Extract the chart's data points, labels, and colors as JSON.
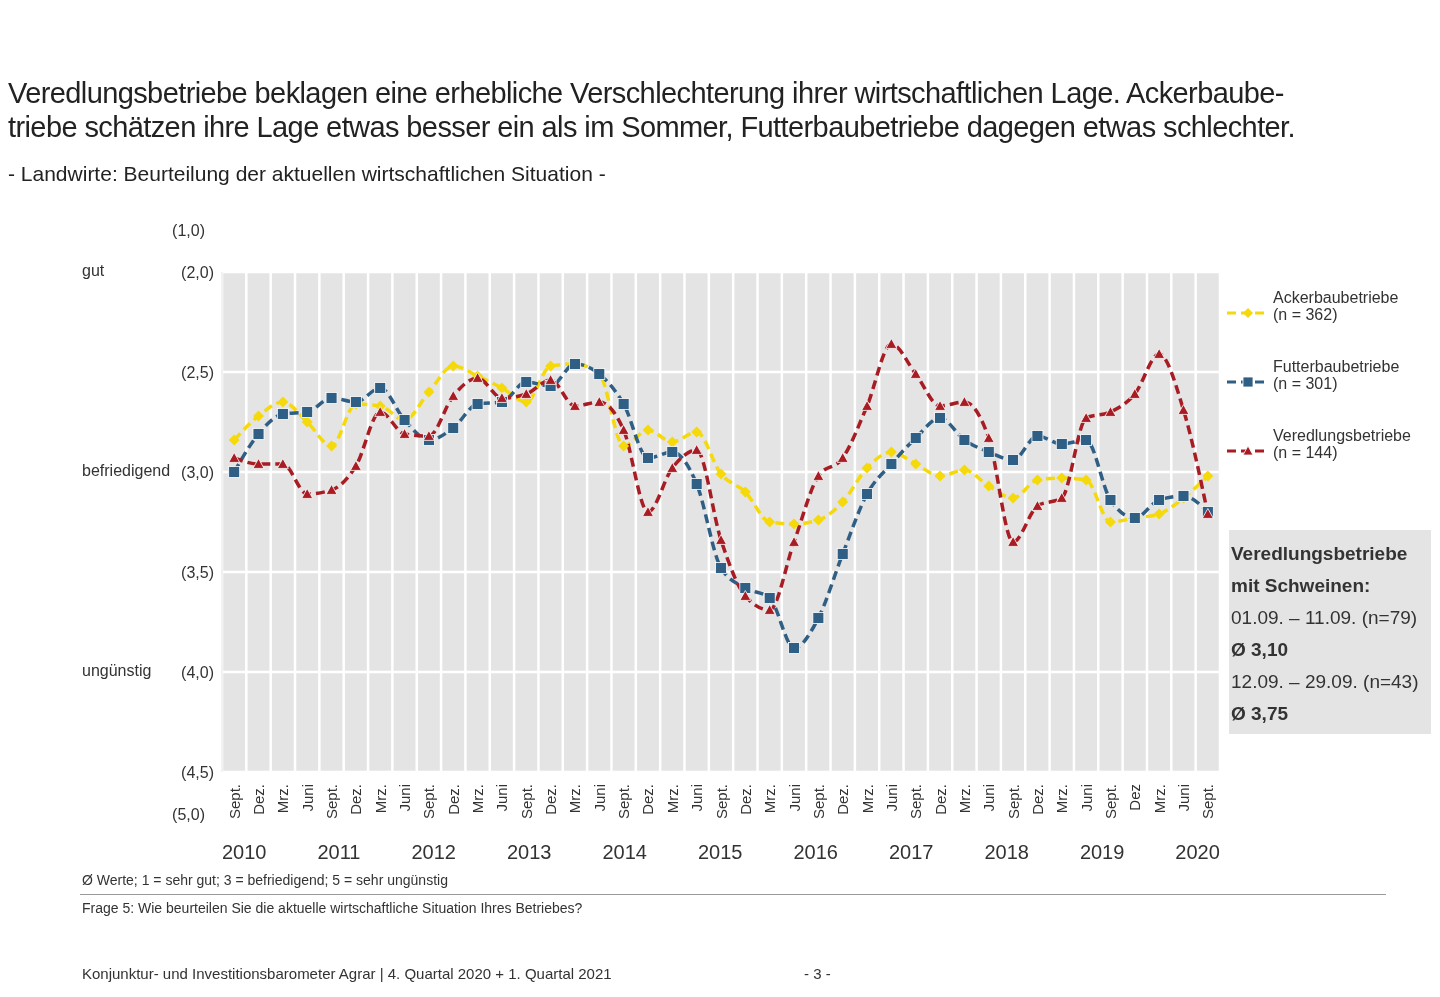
{
  "chart_data": {
    "type": "line",
    "title": "Veredlungsbetriebe beklagen eine erhebliche Verschlechterung ihrer wirtschaftlichen Lage. Ackerbaube-\ntriebe schätzen ihre Lage etwas besser ein als im Sommer, Futterbaubetriebe dagegen etwas schlechter.",
    "subtitle": "- Landwirte: Beurteilung der aktuellen wirtschaftlichen Situation -",
    "categories": [
      "Sept.",
      "Dez.",
      "Mrz.",
      "Juni",
      "Sept.",
      "Dez.",
      "Mrz.",
      "Juni",
      "Sept.",
      "Dez.",
      "Mrz.",
      "Juni",
      "Sept.",
      "Dez.",
      "Mrz.",
      "Juni",
      "Sept.",
      "Dez.",
      "Mrz.",
      "Juni",
      "Sept.",
      "Dez.",
      "Mrz.",
      "Juni",
      "Sept.",
      "Dez.",
      "Mrz.",
      "Juni",
      "Sept.",
      "Dez.",
      "Mrz.",
      "Juni",
      "Sept.",
      "Dez.",
      "Mrz.",
      "Juni",
      "Sept.",
      "Dez",
      "Mrz.",
      "Juni",
      "Sept."
    ],
    "series": [
      {
        "name": "Ackerbaubetriebe\n(n = 362)",
        "color": "#f5d90a",
        "marker": "diamond",
        "values": [
          2.84,
          2.72,
          2.65,
          2.75,
          2.87,
          2.66,
          2.67,
          2.74,
          2.6,
          2.47,
          2.52,
          2.58,
          2.65,
          2.47,
          2.46,
          2.51,
          2.87,
          2.79,
          2.85,
          2.8,
          3.01,
          3.1,
          3.25,
          3.26,
          3.24,
          3.15,
          2.98,
          2.9,
          2.96,
          3.02,
          2.99,
          3.07,
          3.13,
          3.04,
          3.03,
          3.04,
          3.25,
          3.23,
          3.21,
          3.13,
          3.02
        ]
      },
      {
        "name": "Futterbaubetriebe\n(n = 301)",
        "color": "#2f5f85",
        "marker": "square",
        "values": [
          3.0,
          2.81,
          2.71,
          2.7,
          2.63,
          2.65,
          2.58,
          2.74,
          2.84,
          2.78,
          2.66,
          2.65,
          2.55,
          2.57,
          2.46,
          2.51,
          2.66,
          2.93,
          2.9,
          3.06,
          3.48,
          3.58,
          3.63,
          3.88,
          3.73,
          3.41,
          3.11,
          2.96,
          2.83,
          2.73,
          2.84,
          2.9,
          2.94,
          2.82,
          2.86,
          2.84,
          3.14,
          3.23,
          3.14,
          3.12,
          3.2
        ]
      },
      {
        "name": "Veredlungsbetriebe\n(n = 144)",
        "color": "#a81c24",
        "marker": "triangle",
        "values": [
          2.93,
          2.96,
          2.96,
          3.11,
          3.09,
          2.97,
          2.7,
          2.81,
          2.82,
          2.62,
          2.53,
          2.63,
          2.61,
          2.54,
          2.67,
          2.65,
          2.79,
          3.2,
          2.98,
          2.89,
          3.34,
          3.62,
          3.69,
          3.35,
          3.02,
          2.93,
          2.67,
          2.36,
          2.51,
          2.67,
          2.65,
          2.83,
          3.35,
          3.17,
          3.13,
          2.73,
          2.7,
          2.61,
          2.41,
          2.69,
          3.21
        ]
      }
    ],
    "ylim": [
      4.5,
      2
    ],
    "yticks": [
      {
        "value": 2,
        "label": "(2,0)"
      },
      {
        "value": 2.5,
        "label": "(2,5)"
      },
      {
        "value": 3,
        "label": "(3,0)"
      },
      {
        "value": 3.5,
        "label": "(3,5)"
      },
      {
        "value": 4,
        "label": "(4,0)"
      },
      {
        "value": 4.5,
        "label": "(4,5)"
      }
    ],
    "grid": true,
    "legend": "right",
    "line_style": "dashed",
    "annotations": [
      "2010",
      "2011",
      "2012",
      "2013",
      "2014",
      "2015",
      "2016",
      "2017",
      "2018",
      "2019",
      "2020",
      "(1,0)",
      "(5,0)",
      "gut",
      "befriedigend",
      "ungünstig",
      "Veredlungsbetriebe\nmit Schweinen:",
      "01.09. – 11.09. (n=79)",
      "Ø 3,10",
      "12.09. – 29.09. (n=43)",
      "Ø 3,75",
      "Ø Werte; 1 = sehr gut; 3 = befriedigend; 5 = sehr ungünstig",
      "Frage 5: Wie beurteilen Sie die aktuelle wirtschaftliche Situation Ihres Betriebes?",
      "Konjunktur- und Investitionsbarometer Agrar | 4. Quartal 2020 + 1. Quartal 2021",
      "- 3 -"
    ]
  }
}
